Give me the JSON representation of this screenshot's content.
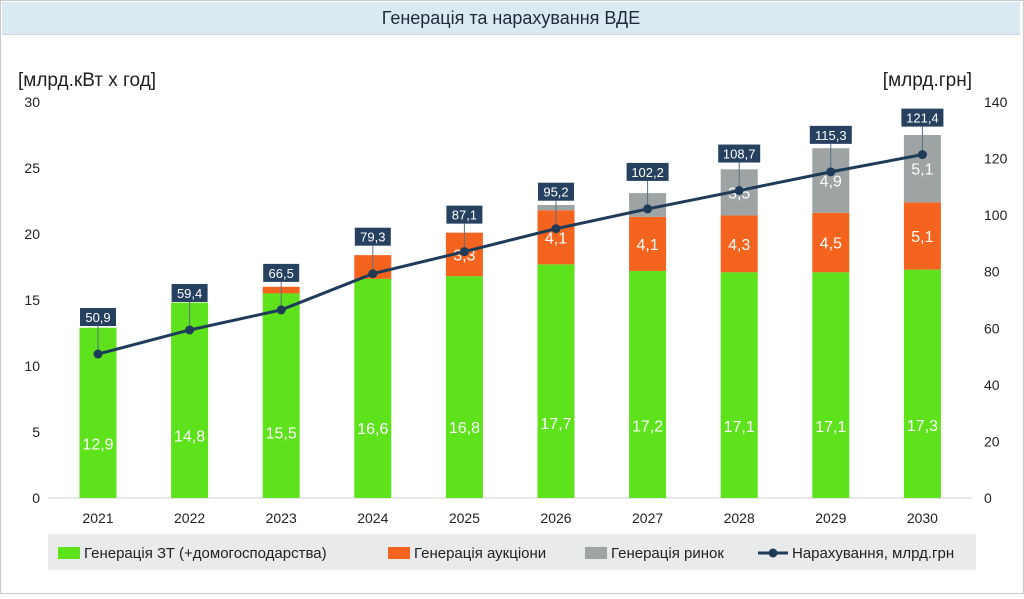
{
  "title": "Генерація та нарахування ВДЕ",
  "colors": {
    "green": "#5ee21c",
    "orange": "#f5641e",
    "gray": "#9ea3a4",
    "line": "#1f3b5a",
    "label_box": "#25415f",
    "legend_bg": "#e8eaeb"
  },
  "chart_data": {
    "type": "bar",
    "stacked": true,
    "categories": [
      "2021",
      "2022",
      "2023",
      "2024",
      "2025",
      "2026",
      "2027",
      "2028",
      "2029",
      "2030"
    ],
    "left_axis_label": "[млрд.кВт х год]",
    "right_axis_label": "[млрд.грн]",
    "ylim_left": [
      0,
      30
    ],
    "ylim_right": [
      0,
      140
    ],
    "yticks_left": [
      0,
      5,
      10,
      15,
      20,
      25,
      30
    ],
    "yticks_right": [
      0,
      20,
      40,
      60,
      80,
      100,
      120,
      140
    ],
    "series": [
      {
        "name": "Генерація ЗТ (+домогосподарства)",
        "values": [
          12.9,
          14.8,
          15.5,
          16.6,
          16.8,
          17.7,
          17.2,
          17.1,
          17.1,
          17.3
        ],
        "labels": [
          "12,9",
          "14,8",
          "15,5",
          "16,6",
          "16,8",
          "17,7",
          "17,2",
          "17,1",
          "17,1",
          "17,3"
        ]
      },
      {
        "name": "Генерація аукціони",
        "values": [
          0,
          0,
          0.5,
          1.8,
          3.3,
          4.1,
          4.1,
          4.3,
          4.5,
          5.1
        ],
        "labels": [
          "",
          "",
          "",
          "",
          "3,3",
          "4,1",
          "4,1",
          "4,3",
          "4,5",
          "5,1"
        ]
      },
      {
        "name": "Генерація ринок",
        "values": [
          0,
          0,
          0,
          0,
          0,
          0.4,
          1.8,
          3.5,
          4.9,
          5.1
        ],
        "labels": [
          "",
          "",
          "",
          "",
          "",
          "",
          "",
          "3,5",
          "4,9",
          "5,1"
        ]
      }
    ],
    "line_series": {
      "name": "Нарахування, млрд.грн",
      "axis": "right",
      "values": [
        50.9,
        59.4,
        66.5,
        79.3,
        87.1,
        95.2,
        102.2,
        108.7,
        115.3,
        121.4
      ],
      "labels": [
        "50,9",
        "59,4",
        "66,5",
        "79,3",
        "87,1",
        "95,2",
        "102,2",
        "108,7",
        "115,3",
        "121,4"
      ]
    },
    "grid": false,
    "legend_position": "bottom"
  }
}
